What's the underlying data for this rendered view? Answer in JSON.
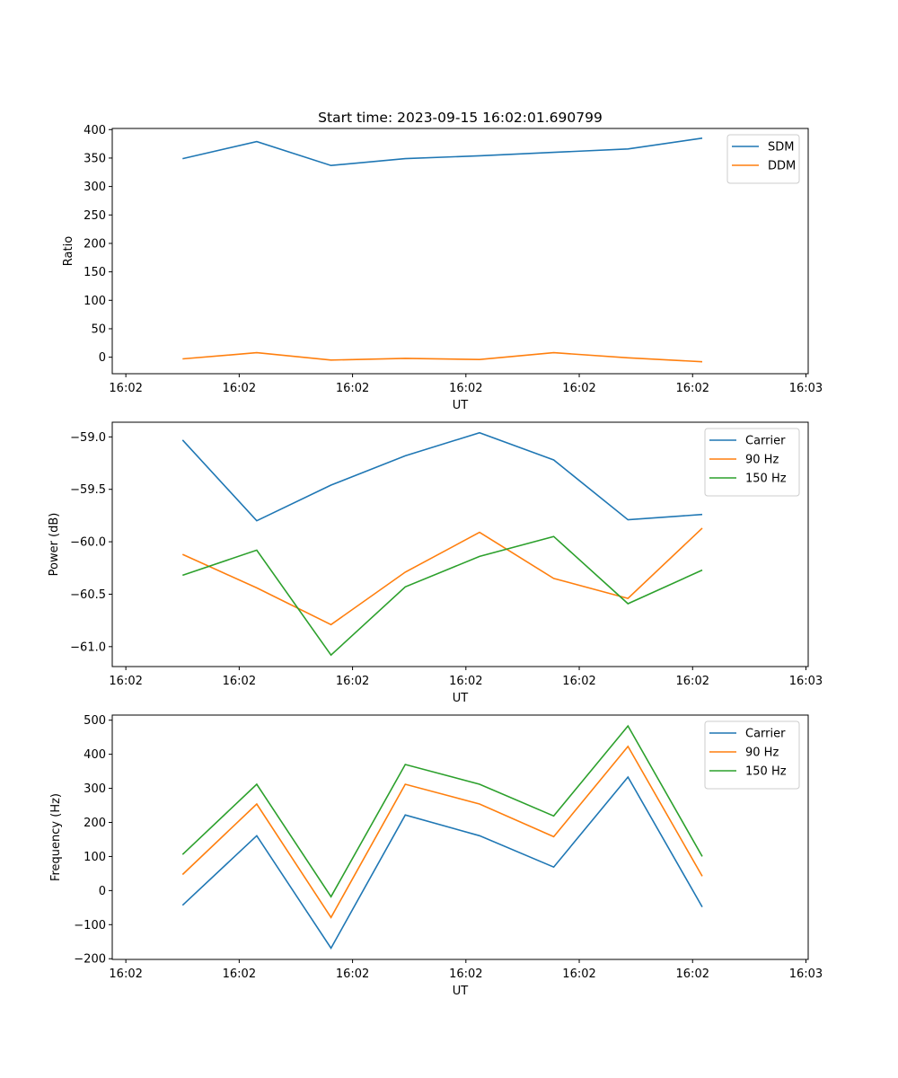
{
  "figure": {
    "title": "Start time: 2023-09-15 16:02:01.690799"
  },
  "chart_data": [
    {
      "type": "line",
      "title": "Start time: 2023-09-15 16:02:01.690799",
      "xlabel": "UT",
      "ylabel": "Ratio",
      "x_ticks": [
        "16:02",
        "16:02",
        "16:02",
        "16:02",
        "16:02",
        "16:02",
        "16:03"
      ],
      "x_tick_values": [
        0,
        1,
        2,
        3,
        4,
        5,
        6
      ],
      "xlim": [
        -0.12,
        6.02
      ],
      "x": [
        0.5,
        1.155,
        1.81,
        2.465,
        3.12,
        3.775,
        4.43,
        5.085
      ],
      "y_ticks": [
        0,
        50,
        100,
        150,
        200,
        250,
        300,
        350,
        400
      ],
      "ylim": [
        -29,
        402
      ],
      "grid": false,
      "legend": "top-right",
      "series": [
        {
          "name": "SDM",
          "color": "#1f77b4",
          "values": [
            349,
            379,
            337,
            349,
            354,
            360,
            366,
            385
          ]
        },
        {
          "name": "DDM",
          "color": "#ff7f0e",
          "values": [
            -3,
            8,
            -5,
            -2,
            -4,
            8,
            -1,
            -8
          ]
        }
      ]
    },
    {
      "type": "line",
      "title": "",
      "xlabel": "UT",
      "ylabel": "Power (dB)",
      "x_ticks": [
        "16:02",
        "16:02",
        "16:02",
        "16:02",
        "16:02",
        "16:02",
        "16:03"
      ],
      "x_tick_values": [
        0,
        1,
        2,
        3,
        4,
        5,
        6
      ],
      "xlim": [
        -0.12,
        6.02
      ],
      "x": [
        0.5,
        1.155,
        1.81,
        2.465,
        3.12,
        3.775,
        4.43,
        5.085
      ],
      "y_ticks": [
        -61.0,
        -60.5,
        -60.0,
        -59.5,
        -59.0
      ],
      "y_tick_labels": [
        "−61.0",
        "−60.5",
        "−60.0",
        "−59.5",
        "−59.0"
      ],
      "ylim": [
        -61.19,
        -58.86
      ],
      "grid": false,
      "legend": "top-right",
      "series": [
        {
          "name": "Carrier",
          "color": "#1f77b4",
          "values": [
            -59.03,
            -59.8,
            -59.46,
            -59.18,
            -58.96,
            -59.22,
            -59.79,
            -59.74
          ]
        },
        {
          "name": "90 Hz",
          "color": "#ff7f0e",
          "values": [
            -60.12,
            -60.44,
            -60.79,
            -60.29,
            -59.91,
            -60.35,
            -60.54,
            -59.87
          ]
        },
        {
          "name": "150 Hz",
          "color": "#2ca02c",
          "values": [
            -60.32,
            -60.08,
            -61.08,
            -60.43,
            -60.14,
            -59.95,
            -60.59,
            -60.27
          ]
        }
      ]
    },
    {
      "type": "line",
      "title": "",
      "xlabel": "UT",
      "ylabel": "Frequency (Hz)",
      "x_ticks": [
        "16:02",
        "16:02",
        "16:02",
        "16:02",
        "16:02",
        "16:02",
        "16:03"
      ],
      "x_tick_values": [
        0,
        1,
        2,
        3,
        4,
        5,
        6
      ],
      "xlim": [
        -0.12,
        6.02
      ],
      "x": [
        0.5,
        1.155,
        1.81,
        2.465,
        3.12,
        3.775,
        4.43,
        5.085
      ],
      "y_ticks": [
        -200,
        -100,
        0,
        100,
        200,
        300,
        400,
        500
      ],
      "y_tick_labels": [
        "−200",
        "−100",
        "0",
        "100",
        "200",
        "300",
        "400",
        "500"
      ],
      "ylim": [
        -202,
        515
      ],
      "grid": false,
      "legend": "top-right",
      "series": [
        {
          "name": "Carrier",
          "color": "#1f77b4",
          "values": [
            -43,
            161,
            -169,
            222,
            161,
            69,
            333,
            -48
          ]
        },
        {
          "name": "90 Hz",
          "color": "#ff7f0e",
          "values": [
            47,
            254,
            -79,
            312,
            254,
            158,
            423,
            42
          ]
        },
        {
          "name": "150 Hz",
          "color": "#2ca02c",
          "values": [
            106,
            312,
            -18,
            370,
            312,
            219,
            483,
            100
          ]
        }
      ]
    }
  ]
}
